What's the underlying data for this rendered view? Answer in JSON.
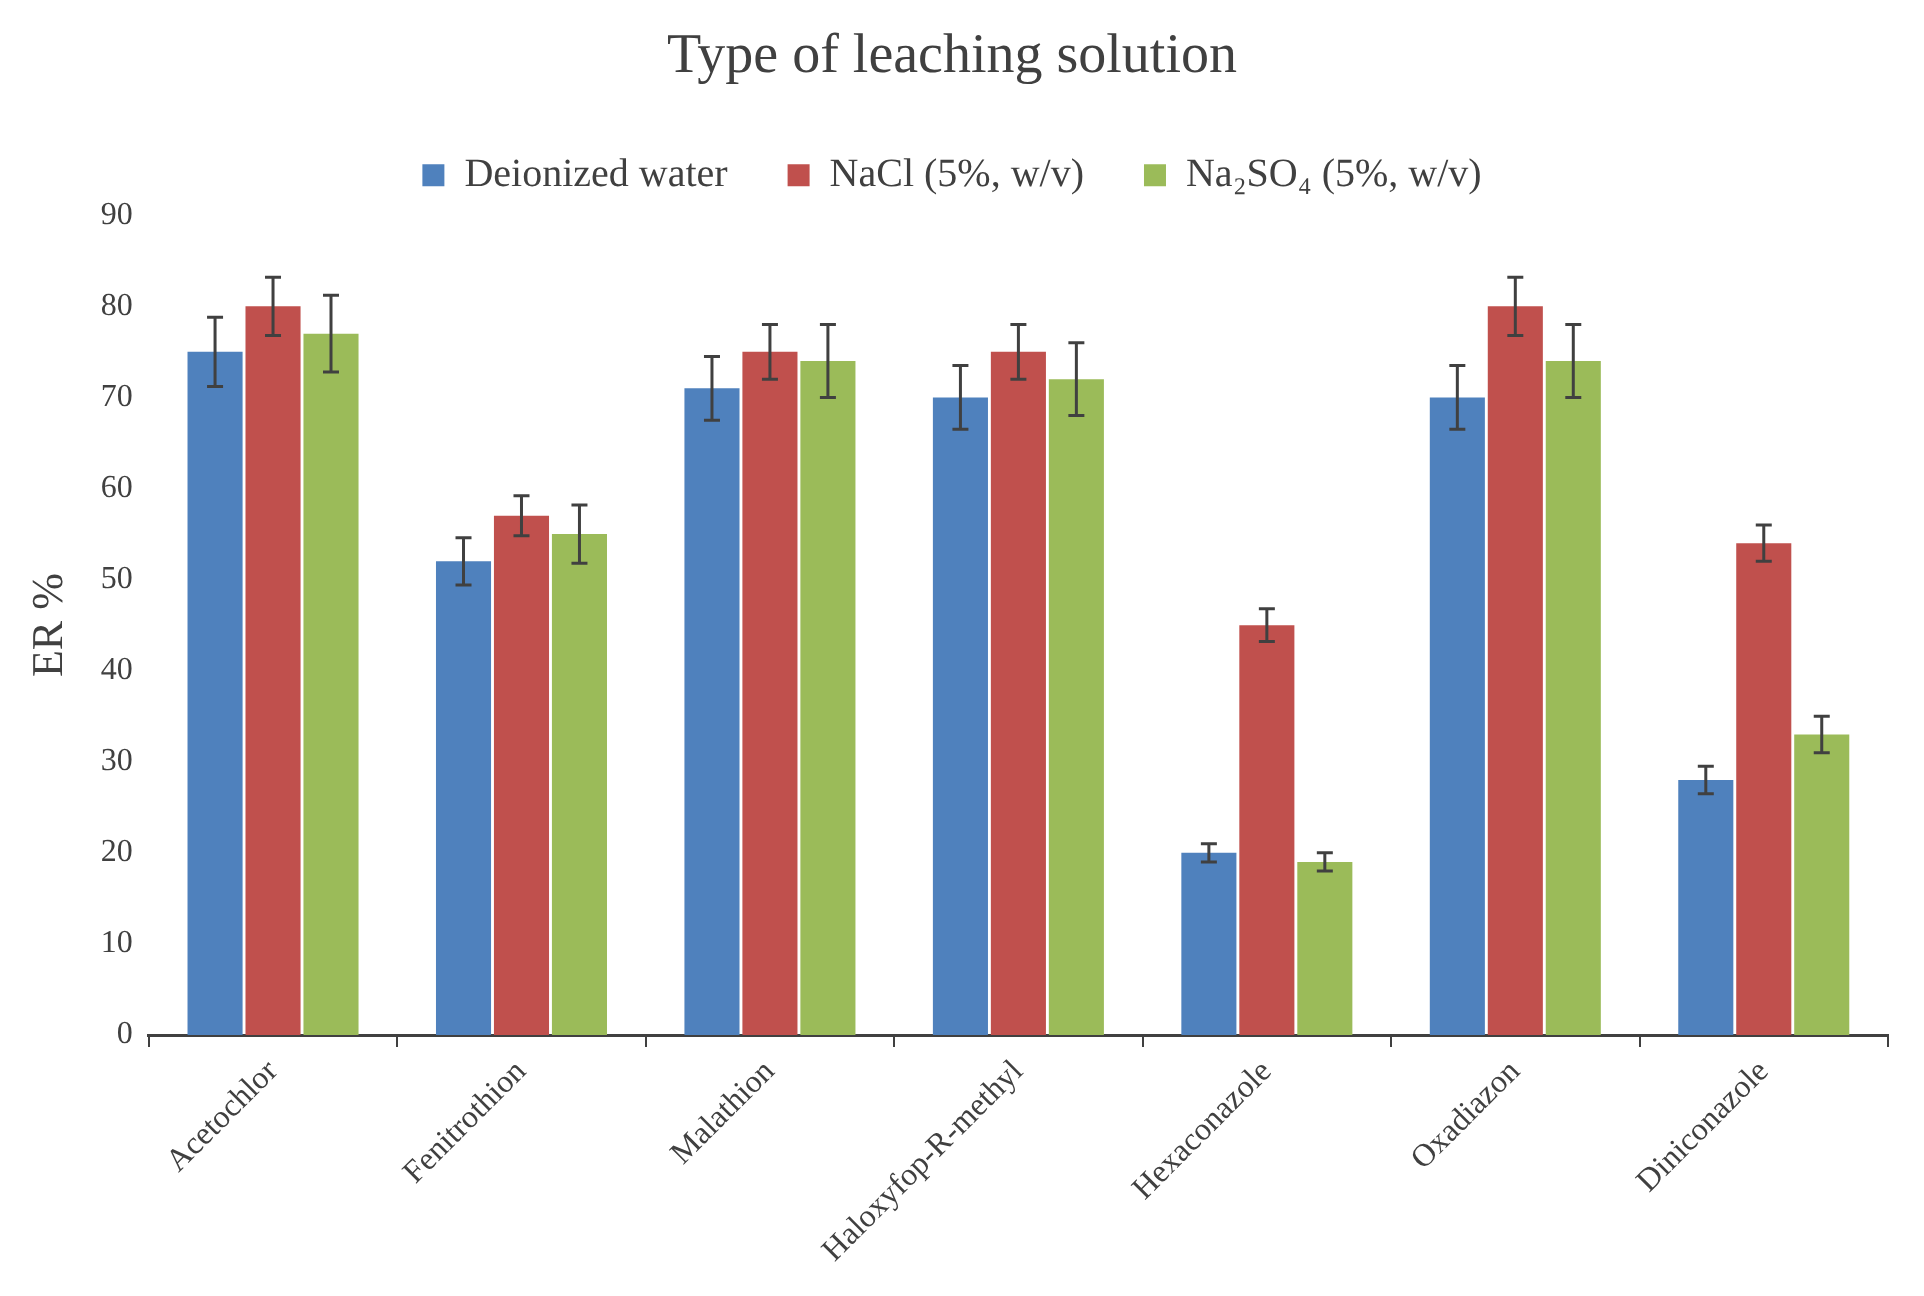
{
  "chart_data": {
    "type": "bar",
    "title": "Type of leaching solution",
    "ylabel": "ER %",
    "categories": [
      "Acetochlor",
      "Fenitrothion",
      "Malathion",
      "Haloxyfop-R-methyl",
      "Hexaconazole",
      "Oxadiazon",
      "Diniconazole"
    ],
    "series": [
      {
        "name": "Deionized water",
        "color": "#4f81bd",
        "values": [
          75,
          52,
          71,
          70,
          20,
          70,
          28
        ],
        "errors": [
          3.8,
          2.6,
          3.5,
          3.5,
          1,
          3.5,
          1.5
        ]
      },
      {
        "name": "NaCl (5%, w/v)",
        "color": "#c0504d",
        "values": [
          80,
          57,
          75,
          75,
          45,
          80,
          54
        ],
        "errors": [
          3.2,
          2.2,
          3,
          3,
          1.8,
          3.2,
          2
        ]
      },
      {
        "name": "Na₂SO₄ (5%, w/v)",
        "color": "#9bbb59",
        "values": [
          77,
          55,
          74,
          72,
          19,
          74,
          33
        ],
        "errors": [
          4.2,
          3.2,
          4,
          4,
          1,
          4,
          2
        ]
      }
    ],
    "ylim": [
      0,
      90
    ],
    "yticks": [
      0,
      10,
      20,
      30,
      40,
      50,
      60,
      70,
      80,
      90
    ],
    "grid": false,
    "legend": "top"
  }
}
